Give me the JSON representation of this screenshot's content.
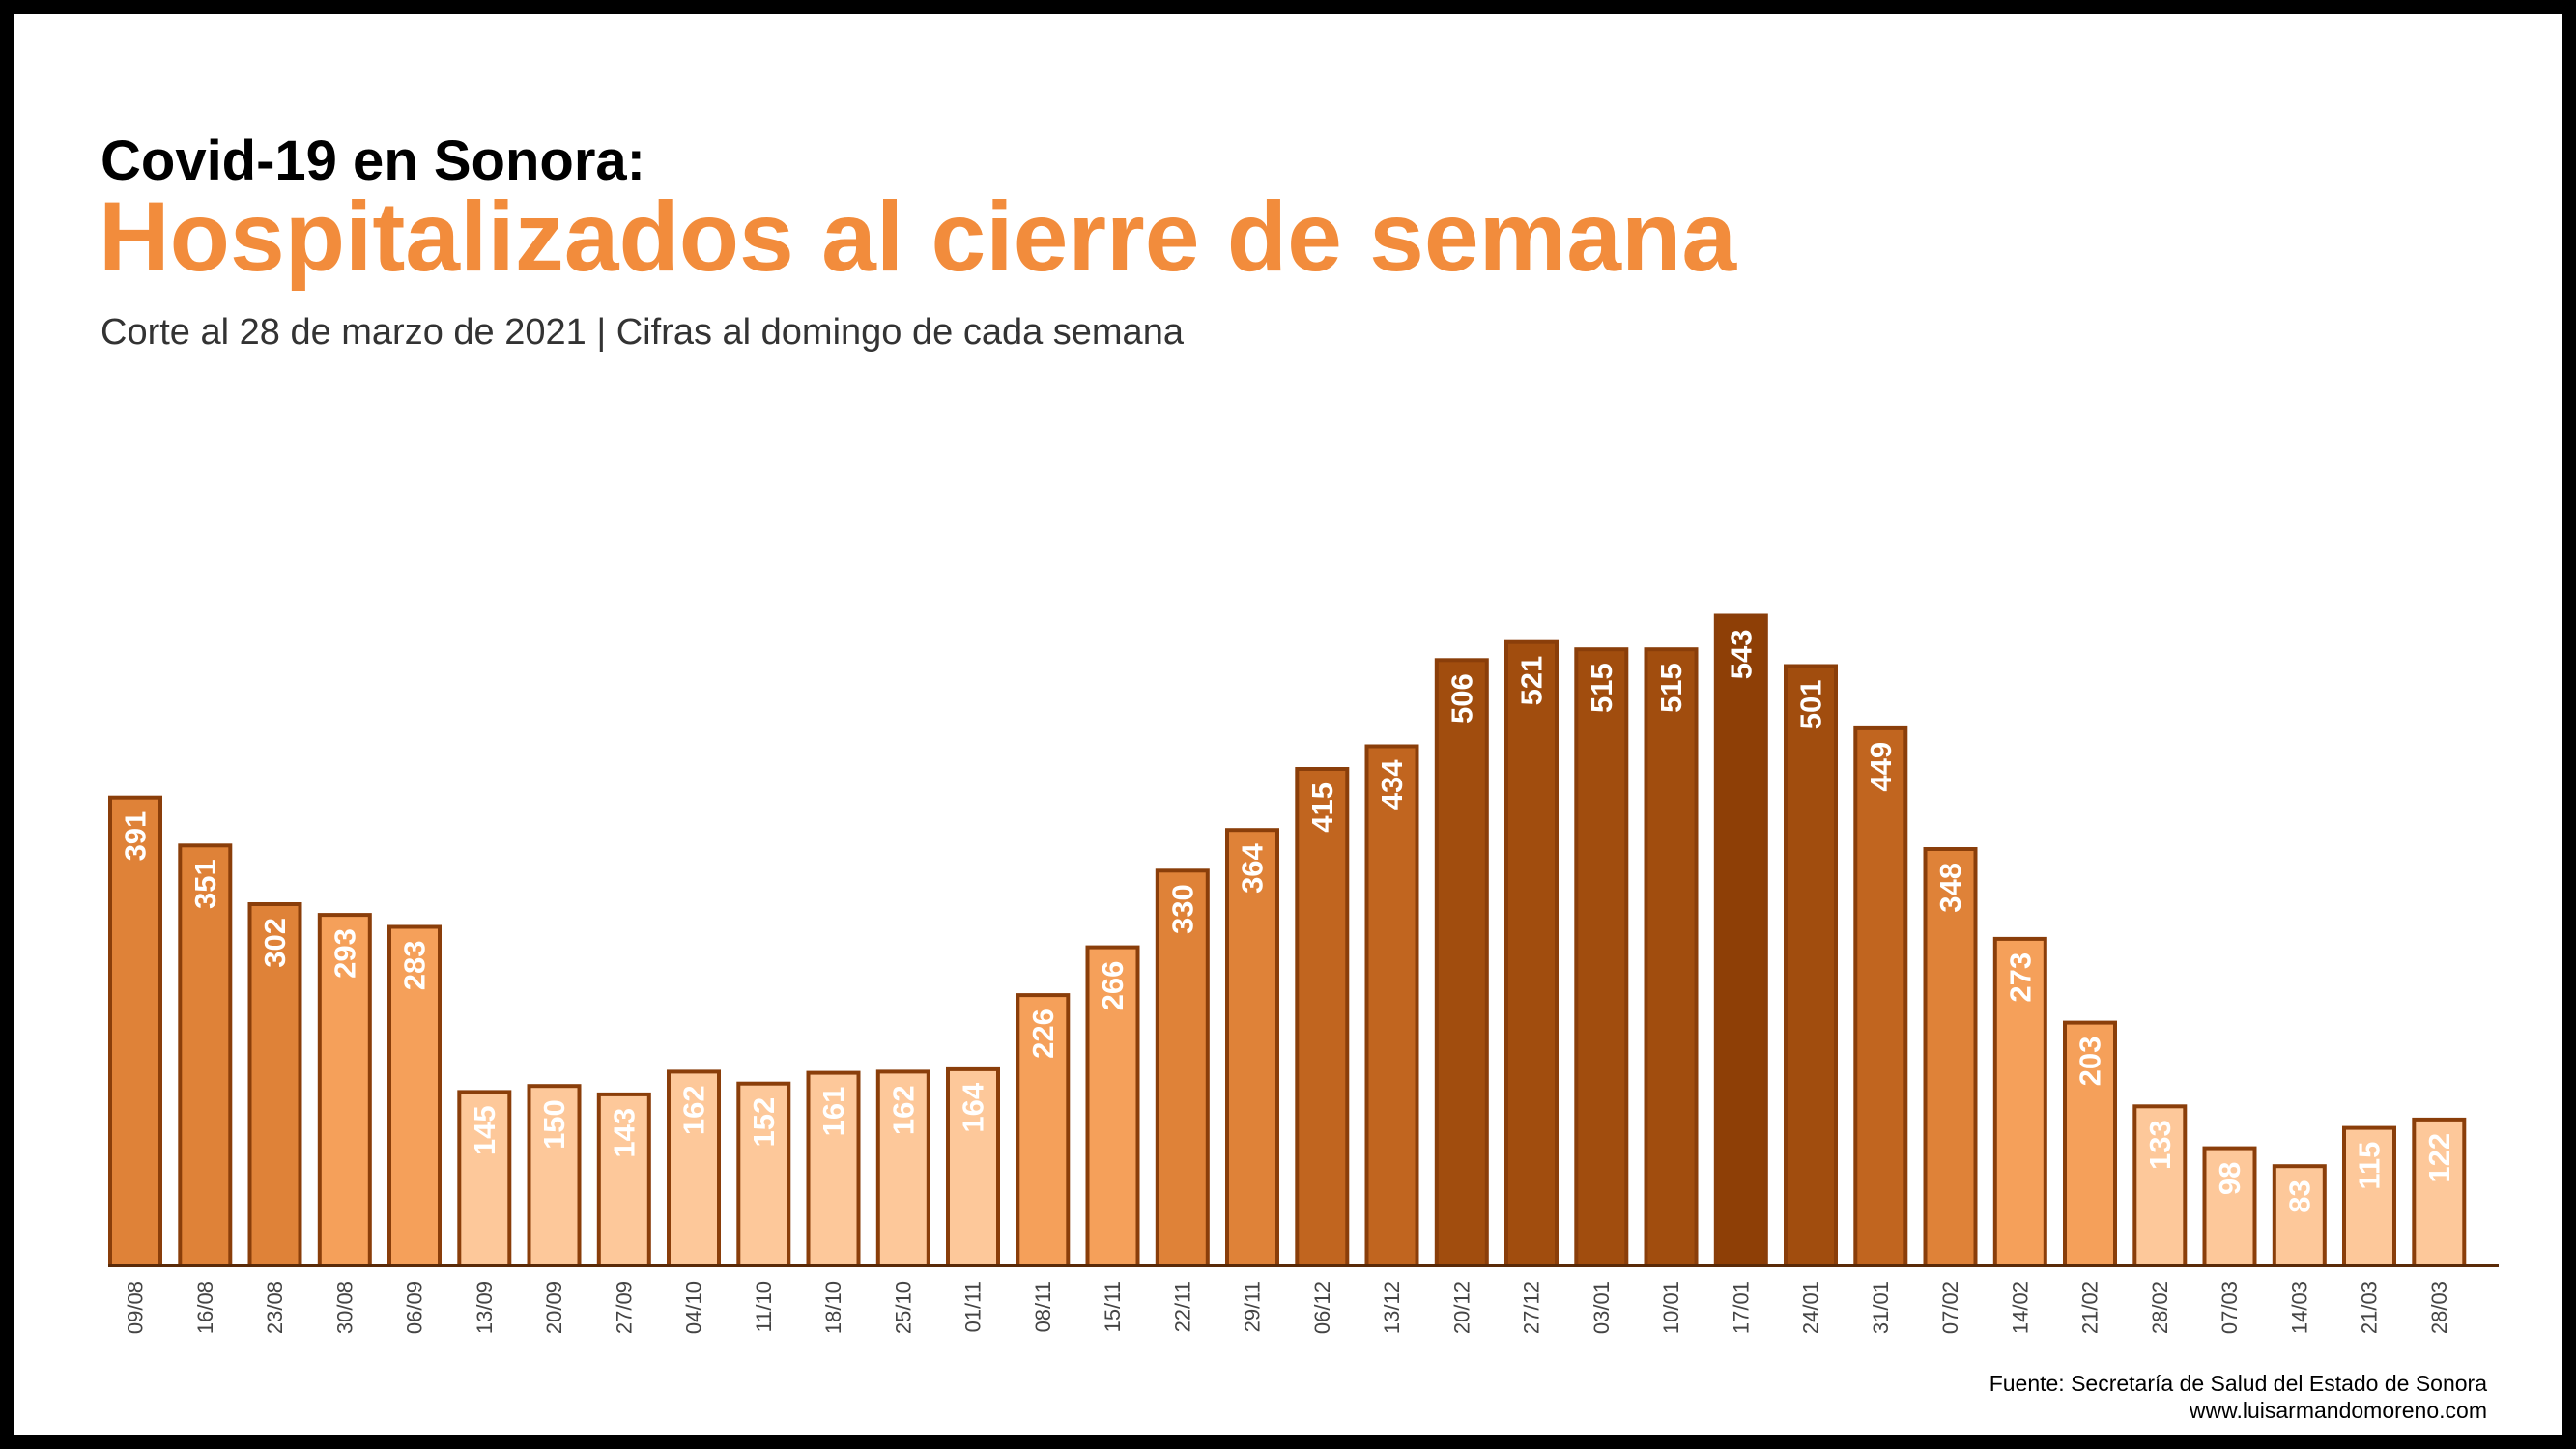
{
  "header": {
    "kicker": "Covid-19 en Sonora:",
    "headline": "Hospitalizados al cierre de semana",
    "subtitle": "Corte al 28 de marzo de 2021 | Cifras al domingo de cada semana"
  },
  "footer": {
    "source": "Fuente: Secretaría de Salud del Estado de Sonora",
    "site": "www.luisarmandomoreno.com"
  },
  "colors": {
    "headline": "#f28c3c",
    "kicker": "#000000",
    "bar_stroke": "#8a3e0a",
    "axis": "#5a2a08",
    "value_label": "#ffffff",
    "scale": [
      "#fdc89a",
      "#f5a05a",
      "#df8238",
      "#c1651f",
      "#a14d0e",
      "#8e3f06"
    ]
  },
  "chart_data": {
    "type": "bar",
    "title": "Hospitalizados al cierre de semana",
    "xlabel": "",
    "ylabel": "",
    "ylim": [
      0,
      550
    ],
    "grid": false,
    "legend": "none",
    "categories": [
      "09/08",
      "16/08",
      "23/08",
      "30/08",
      "06/09",
      "13/09",
      "20/09",
      "27/09",
      "04/10",
      "11/10",
      "18/10",
      "25/10",
      "01/11",
      "08/11",
      "15/11",
      "22/11",
      "29/11",
      "06/12",
      "13/12",
      "20/12",
      "27/12",
      "03/01",
      "10/01",
      "17/01",
      "24/01",
      "31/01",
      "07/02",
      "14/02",
      "21/02",
      "28/02",
      "07/03",
      "14/03",
      "21/03",
      "28/03"
    ],
    "values": [
      391,
      351,
      302,
      293,
      283,
      145,
      150,
      143,
      162,
      152,
      161,
      162,
      164,
      226,
      266,
      330,
      364,
      415,
      434,
      506,
      521,
      515,
      515,
      543,
      501,
      449,
      348,
      273,
      203,
      133,
      98,
      83,
      115,
      122
    ]
  }
}
